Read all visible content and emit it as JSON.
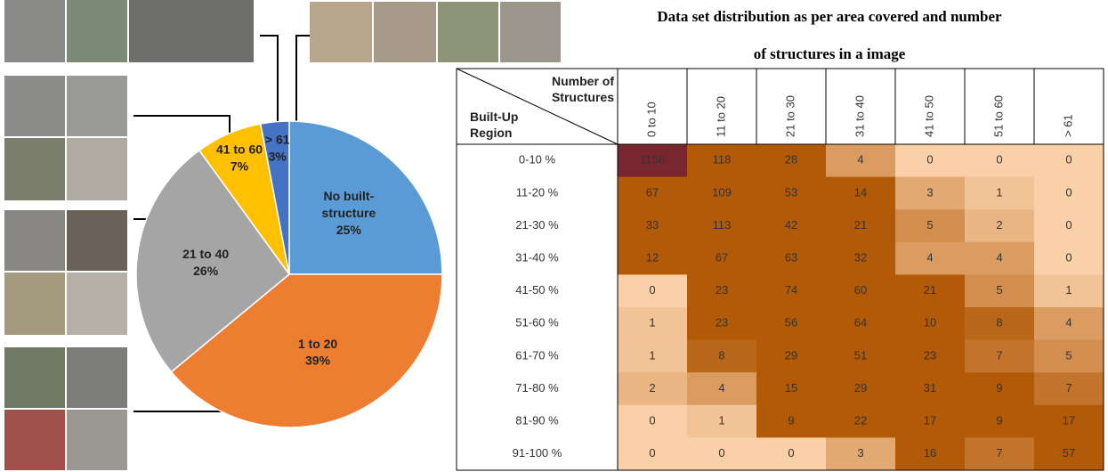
{
  "chart_data": [
    {
      "type": "pie",
      "categories": [
        "No built-structure",
        "1 to 20",
        "21 to 40",
        "41 to 60",
        "> 61"
      ],
      "values": [
        25,
        39,
        26,
        7,
        3
      ],
      "value_labels": [
        "25%",
        "39%",
        "26%",
        "7%",
        "3%"
      ],
      "colors": [
        "#5b9bd5",
        "#ed7d31",
        "#a5a5a5",
        "#ffc000",
        "#4472c4"
      ]
    },
    {
      "type": "heatmap",
      "title": "Data set distribution as per area covered and number of structures in a image",
      "x_label": "Number of Structures",
      "y_label": "Built-Up Region",
      "x": [
        "0 to 10",
        "11 to 20",
        "21 to 30",
        "31 to 40",
        "41 to 50",
        "51 to 60",
        "> 61"
      ],
      "y": [
        "0-10 %",
        "11-20 %",
        "21-30 %",
        "31-40 %",
        "41-50 %",
        "51-60 %",
        "61-70 %",
        "71-80 %",
        "81-90 %",
        "91-100 %"
      ],
      "values": [
        [
          1158,
          118,
          28,
          4,
          0,
          0,
          0
        ],
        [
          67,
          109,
          53,
          14,
          3,
          1,
          0
        ],
        [
          33,
          113,
          42,
          21,
          5,
          2,
          0
        ],
        [
          12,
          67,
          63,
          32,
          4,
          4,
          0
        ],
        [
          0,
          23,
          74,
          60,
          21,
          5,
          1
        ],
        [
          1,
          23,
          56,
          64,
          10,
          8,
          4
        ],
        [
          1,
          8,
          29,
          51,
          23,
          7,
          5
        ],
        [
          2,
          4,
          15,
          29,
          31,
          9,
          7
        ],
        [
          0,
          1,
          9,
          22,
          17,
          9,
          17
        ],
        [
          0,
          0,
          0,
          3,
          16,
          7,
          57
        ]
      ],
      "color_scale": [
        "#fad0a8",
        "#b35a08",
        "#7a2630"
      ]
    }
  ]
}
